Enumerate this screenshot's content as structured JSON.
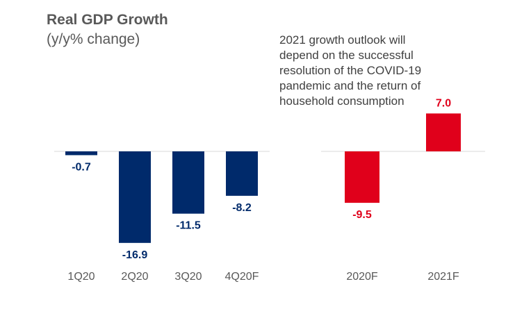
{
  "header": {
    "title": "Real GDP Growth",
    "subtitle": "(y/y% change)"
  },
  "annotation": {
    "text": "2021 growth outlook will depend on the successful resolution of the COVID-19 pandemic and the return of household consumption"
  },
  "colors": {
    "quarterly": "#002a6b",
    "annual": "#e0001b",
    "axis": "#d9d9d9",
    "tick_text": "#595959"
  },
  "chart_data": [
    {
      "type": "bar",
      "categories": [
        "1Q20",
        "2Q20",
        "3Q20",
        "4Q20F"
      ],
      "values": [
        -0.7,
        -16.9,
        -11.5,
        -8.2
      ],
      "value_labels": [
        "-0.7",
        "-16.9",
        "-11.5",
        "-8.2"
      ],
      "title": "Real GDP Growth",
      "subtitle": "(y/y% change)",
      "color": "#002a6b"
    },
    {
      "type": "bar",
      "categories": [
        "2020F",
        "2021F"
      ],
      "values": [
        -9.5,
        7.0
      ],
      "value_labels": [
        "-9.5",
        "7.0"
      ],
      "color": "#e0001b"
    }
  ]
}
